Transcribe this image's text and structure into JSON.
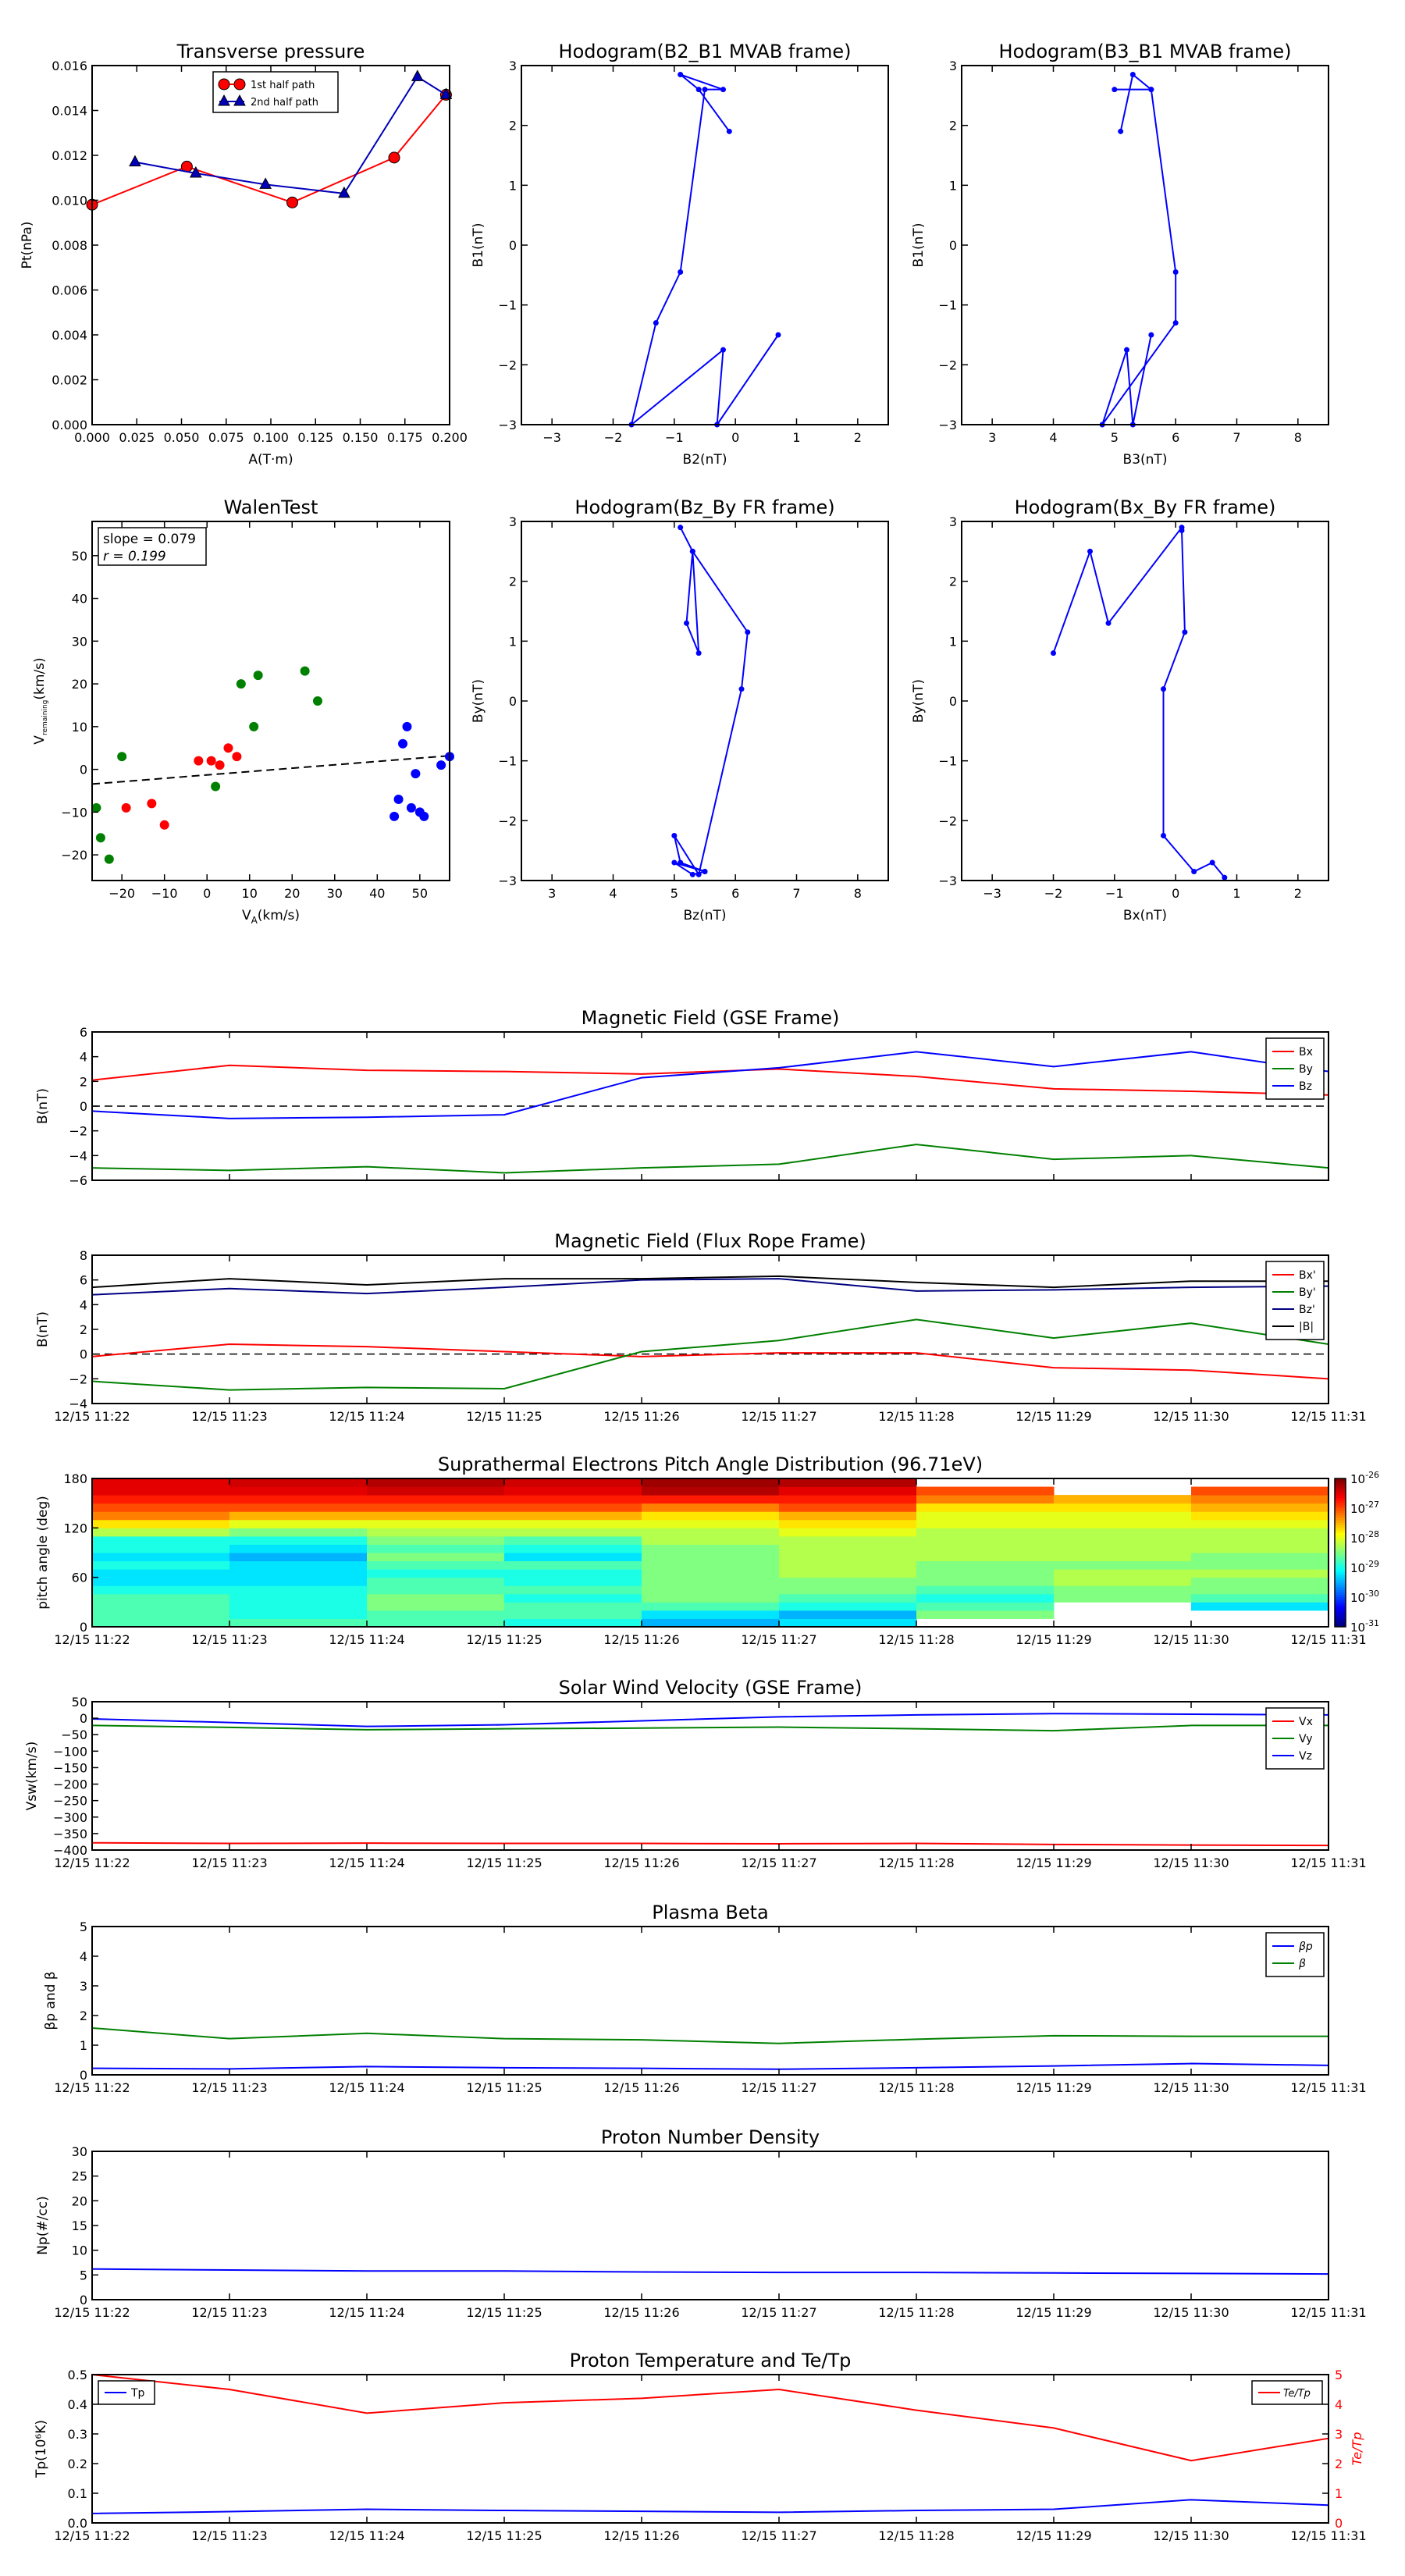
{
  "chart_data": [
    {
      "id": "tp",
      "type": "line",
      "title": "Transverse pressure",
      "xlabel": "A(T·m)",
      "ylabel": "Pt(nPa)",
      "xlim": [
        0,
        0.2
      ],
      "ylim": [
        0,
        0.016
      ],
      "xticks": [
        "0.000",
        "0.025",
        "0.050",
        "0.075",
        "0.100",
        "0.125",
        "0.150",
        "0.175",
        "0.200"
      ],
      "yticks": [
        "0.000",
        "0.002",
        "0.004",
        "0.006",
        "0.008",
        "0.010",
        "0.012",
        "0.014",
        "0.016"
      ],
      "legend": "upper center",
      "series": [
        {
          "name": "1st half path",
          "color": "#ff0000",
          "marker": "circle",
          "x": [
            0.0,
            0.053,
            0.112,
            0.169,
            0.198
          ],
          "y": [
            0.0098,
            0.0115,
            0.0099,
            0.0119,
            0.0147
          ]
        },
        {
          "name": "2nd half path",
          "color": "#0000bb",
          "marker": "triangle",
          "x": [
            0.024,
            0.058,
            0.097,
            0.141,
            0.182,
            0.198
          ],
          "y": [
            0.0117,
            0.0112,
            0.0107,
            0.0103,
            0.0155,
            0.0147
          ]
        }
      ]
    },
    {
      "id": "h1",
      "type": "line",
      "title": "Hodogram(B2_B1 MVAB frame)",
      "xlabel": "B2(nT)",
      "ylabel": "B1(nT)",
      "xlim": [
        -3.5,
        2.5
      ],
      "ylim": [
        -3,
        3
      ],
      "xticks": [
        "−3",
        "−2",
        "−1",
        "0",
        "1",
        "2"
      ],
      "yticks": [
        "−3",
        "−2",
        "−1",
        "0",
        "1",
        "2",
        "3"
      ],
      "series": [
        {
          "color": "#0000ff",
          "marker": "dot",
          "x": [
            -0.1,
            -0.6,
            -0.9,
            -0.2,
            -0.5,
            -0.9,
            -1.3,
            -1.7,
            -0.2,
            -0.3,
            0.7
          ],
          "y": [
            1.9,
            2.6,
            2.85,
            2.6,
            2.6,
            -0.45,
            -1.3,
            -3.0,
            -1.75,
            -3.0,
            -1.5
          ]
        }
      ]
    },
    {
      "id": "h2",
      "type": "line",
      "title": "Hodogram(B3_B1 MVAB frame)",
      "xlabel": "B3(nT)",
      "ylabel": "B1(nT)",
      "xlim": [
        2.5,
        8.5
      ],
      "ylim": [
        -3,
        3
      ],
      "xticks": [
        "3",
        "4",
        "5",
        "6",
        "7",
        "8"
      ],
      "yticks": [
        "−3",
        "−2",
        "−1",
        "0",
        "1",
        "2",
        "3"
      ],
      "series": [
        {
          "color": "#0000ff",
          "marker": "dot",
          "x": [
            5.1,
            5.3,
            5.6,
            5.0,
            5.6,
            6.0,
            6.0,
            4.8,
            5.2,
            5.3,
            5.6
          ],
          "y": [
            1.9,
            2.85,
            2.6,
            2.6,
            2.6,
            -0.45,
            -1.3,
            -3.0,
            -1.75,
            -3.0,
            -1.5
          ]
        }
      ]
    },
    {
      "id": "walen",
      "type": "scatter",
      "title": "WalenTest",
      "xlabel": "V",
      "xlabel_sub": "A",
      "xlabel_tail": "(km/s)",
      "ylabel": "V",
      "ylabel_sub": "remaining",
      "ylabel_tail": "(km/s)",
      "xlim": [
        -27,
        57
      ],
      "ylim": [
        -26,
        58
      ],
      "xticks": [
        "−20",
        "−10",
        "0",
        "10",
        "20",
        "30",
        "40",
        "50"
      ],
      "yticks": [
        "−20",
        "−10",
        "0",
        "10",
        "20",
        "30",
        "40",
        "50"
      ],
      "annotation": [
        "slope = 0.079",
        "r = 0.199"
      ],
      "fit": {
        "slope": 0.079,
        "intercept": -1.3
      },
      "series": [
        {
          "color": "#ff0000",
          "x": [
            -19,
            -13,
            -10,
            -2,
            1,
            3,
            5,
            7
          ],
          "y": [
            -9,
            -8,
            -13,
            2,
            2,
            1,
            5,
            3
          ]
        },
        {
          "color": "#008000",
          "x": [
            -26,
            -25,
            -23,
            -20,
            2,
            8,
            11,
            12,
            23,
            26
          ],
          "y": [
            -9,
            -16,
            -21,
            3,
            -4,
            20,
            10,
            22,
            23,
            16
          ]
        },
        {
          "color": "#0000ff",
          "x": [
            44,
            45,
            46,
            47,
            48,
            49,
            50,
            51,
            55,
            57
          ],
          "y": [
            -11,
            -7,
            6,
            10,
            -9,
            -1,
            -10,
            -11,
            1,
            3
          ]
        }
      ]
    },
    {
      "id": "h3",
      "type": "line",
      "title": "Hodogram(Bz_By FR frame)",
      "xlabel": "Bz(nT)",
      "ylabel": "By(nT)",
      "xlim": [
        2.5,
        8.5
      ],
      "ylim": [
        -3,
        3
      ],
      "xticks": [
        "3",
        "4",
        "5",
        "6",
        "7",
        "8"
      ],
      "yticks": [
        "−3",
        "−2",
        "−1",
        "0",
        "1",
        "2",
        "3"
      ],
      "series": [
        {
          "color": "#0000ff",
          "marker": "dot",
          "x": [
            5.1,
            5.3,
            5.2,
            5.4,
            5.3,
            6.2,
            6.1,
            5.4,
            5.0,
            5.1,
            5.5,
            5.0,
            5.3,
            5.5
          ],
          "y": [
            2.9,
            2.5,
            1.3,
            0.8,
            2.5,
            1.15,
            0.2,
            -2.9,
            -2.25,
            -2.7,
            -2.85,
            -2.7,
            -2.9,
            -2.85
          ]
        }
      ]
    },
    {
      "id": "h4",
      "type": "line",
      "title": "Hodogram(Bx_By FR frame)",
      "xlabel": "Bx(nT)",
      "ylabel": "By(nT)",
      "xlim": [
        -3.5,
        2.5
      ],
      "ylim": [
        -3,
        3
      ],
      "xticks": [
        "−3",
        "−2",
        "−1",
        "0",
        "1",
        "2"
      ],
      "yticks": [
        "−3",
        "−2",
        "−1",
        "0",
        "1",
        "2",
        "3"
      ],
      "series": [
        {
          "color": "#0000ff",
          "marker": "dot",
          "x": [
            -2.0,
            -1.4,
            -1.1,
            0.1,
            0.1,
            0.15,
            -0.2,
            -0.2,
            0.3,
            0.6,
            0.8
          ],
          "y": [
            0.8,
            2.5,
            1.3,
            2.9,
            2.85,
            1.15,
            0.2,
            -2.25,
            -2.85,
            -2.7,
            -2.95
          ]
        }
      ]
    },
    {
      "id": "mag_gse",
      "type": "line",
      "title": "Magnetic Field (GSE Frame)",
      "ylabel": "B(nT)",
      "ylim": [
        -6,
        6
      ],
      "yticks": [
        "−6",
        "−4",
        "−2",
        "0",
        "2",
        "4",
        "6"
      ],
      "zero_line": true,
      "categories": [
        "12/15 11:22",
        "12/15 11:23",
        "12/15 11:24",
        "12/15 11:25",
        "12/15 11:26",
        "12/15 11:27",
        "12/15 11:28",
        "12/15 11:29",
        "12/15 11:30",
        "12/15 11:31"
      ],
      "series": [
        {
          "name": "Bx",
          "color": "#ff0000",
          "values": [
            2.1,
            3.3,
            2.9,
            2.8,
            2.6,
            3.0,
            2.4,
            1.4,
            1.2,
            0.9
          ]
        },
        {
          "name": "By",
          "color": "#008000",
          "values": [
            -5.0,
            -5.2,
            -4.9,
            -5.4,
            -5.0,
            -4.7,
            -3.1,
            -4.3,
            -4.0,
            -5.0
          ]
        },
        {
          "name": "Bz",
          "color": "#0000ff",
          "values": [
            -0.4,
            -1.0,
            -0.9,
            -0.7,
            2.3,
            3.1,
            4.4,
            3.2,
            4.4,
            2.8
          ]
        }
      ]
    },
    {
      "id": "mag_fr",
      "type": "line",
      "title": "Magnetic Field (Flux Rope Frame)",
      "ylabel": "B(nT)",
      "ylim": [
        -4,
        8
      ],
      "yticks": [
        "−4",
        "−2",
        "0",
        "2",
        "4",
        "6",
        "8"
      ],
      "zero_line": true,
      "categories": [
        "12/15 11:22",
        "12/15 11:23",
        "12/15 11:24",
        "12/15 11:25",
        "12/15 11:26",
        "12/15 11:27",
        "12/15 11:28",
        "12/15 11:29",
        "12/15 11:30",
        "12/15 11:31"
      ],
      "xticks_shown": true,
      "series": [
        {
          "name": "Bx'",
          "color": "#ff0000",
          "values": [
            -0.2,
            0.8,
            0.6,
            0.2,
            -0.2,
            0.1,
            0.1,
            -1.1,
            -1.3,
            -2.0
          ]
        },
        {
          "name": "By'",
          "color": "#008000",
          "values": [
            -2.2,
            -2.9,
            -2.7,
            -2.8,
            0.2,
            1.1,
            2.8,
            1.3,
            2.5,
            0.8
          ]
        },
        {
          "name": "Bz'",
          "color": "#000080",
          "values": [
            4.8,
            5.3,
            4.9,
            5.4,
            6.0,
            6.1,
            5.1,
            5.2,
            5.4,
            5.5
          ]
        },
        {
          "name": "|B|",
          "color": "#000000",
          "values": [
            5.4,
            6.1,
            5.6,
            6.1,
            6.1,
            6.3,
            5.8,
            5.4,
            5.9,
            5.9
          ]
        }
      ]
    },
    {
      "id": "pad",
      "type": "heatmap",
      "title": "Suprathermal Electrons Pitch Angle Distribution (96.71eV)",
      "ylabel": "pitch angle (deg)",
      "ylim": [
        0,
        180
      ],
      "yticks": [
        "0",
        "60",
        "120",
        "180"
      ],
      "categories": [
        "12/15 11:22",
        "12/15 11:23",
        "12/15 11:24",
        "12/15 11:25",
        "12/15 11:26",
        "12/15 11:27",
        "12/15 11:28",
        "12/15 11:29",
        "12/15 11:30",
        "12/15 11:31"
      ],
      "colorbar": {
        "ticks": [
          "-26",
          "-27",
          "-28",
          "-29",
          "-30",
          "-31"
        ],
        "base": "10"
      },
      "bins": 18,
      "columns": [
        [
          0.45,
          0.45,
          0.45,
          0.45,
          0.4,
          0.35,
          0.35,
          0.4,
          0.35,
          0.4,
          0.4,
          0.55,
          0.65,
          0.75,
          0.8,
          0.85,
          0.9,
          0.9
        ],
        [
          0.45,
          0.4,
          0.4,
          0.4,
          0.4,
          0.35,
          0.35,
          0.35,
          0.3,
          0.35,
          0.4,
          0.5,
          0.6,
          0.7,
          0.8,
          0.85,
          0.9,
          0.92
        ],
        [
          0.45,
          0.45,
          0.5,
          0.5,
          0.45,
          0.45,
          0.4,
          0.45,
          0.5,
          0.45,
          0.5,
          0.55,
          0.6,
          0.7,
          0.8,
          0.85,
          0.92,
          0.95
        ],
        [
          0.4,
          0.45,
          0.45,
          0.4,
          0.45,
          0.4,
          0.4,
          0.45,
          0.35,
          0.4,
          0.45,
          0.55,
          0.6,
          0.7,
          0.8,
          0.85,
          0.9,
          0.92
        ],
        [
          0.3,
          0.35,
          0.45,
          0.5,
          0.5,
          0.5,
          0.5,
          0.5,
          0.5,
          0.5,
          0.55,
          0.55,
          0.6,
          0.65,
          0.75,
          0.85,
          0.95,
          0.97
        ],
        [
          0.35,
          0.3,
          0.4,
          0.45,
          0.5,
          0.5,
          0.55,
          0.55,
          0.55,
          0.55,
          0.55,
          0.6,
          0.65,
          0.7,
          0.8,
          0.85,
          0.9,
          0.95
        ],
        [
          null,
          0.5,
          0.45,
          0.4,
          0.45,
          0.5,
          0.5,
          0.5,
          0.55,
          0.55,
          0.55,
          0.55,
          0.6,
          0.6,
          0.65,
          0.75,
          0.8,
          null
        ],
        [
          null,
          null,
          null,
          0.5,
          0.5,
          0.55,
          0.55,
          0.5,
          0.55,
          0.55,
          0.55,
          0.55,
          0.6,
          0.6,
          0.65,
          0.7,
          null,
          null
        ],
        [
          null,
          null,
          0.35,
          0.45,
          0.5,
          0.5,
          0.55,
          0.5,
          0.5,
          0.55,
          0.55,
          0.55,
          0.6,
          0.65,
          0.7,
          0.75,
          0.8,
          null
        ]
      ]
    },
    {
      "id": "vel",
      "type": "line",
      "title": "Solar Wind Velocity (GSE Frame)",
      "ylabel": "Vsw(km/s)",
      "ylim": [
        -400,
        50
      ],
      "yticks": [
        "−400",
        "−350",
        "−300",
        "−250",
        "−200",
        "−150",
        "−100",
        "−50",
        "0",
        "50"
      ],
      "categories": [
        "12/15 11:22",
        "12/15 11:23",
        "12/15 11:24",
        "12/15 11:25",
        "12/15 11:26",
        "12/15 11:27",
        "12/15 11:28",
        "12/15 11:29",
        "12/15 11:30",
        "12/15 11:31"
      ],
      "series": [
        {
          "name": "Vx",
          "color": "#ff0000",
          "values": [
            -378,
            -380,
            -379,
            -380,
            -380,
            -381,
            -380,
            -383,
            -385,
            -386
          ]
        },
        {
          "name": "Vy",
          "color": "#008000",
          "values": [
            -22,
            -28,
            -35,
            -32,
            -30,
            -27,
            -32,
            -38,
            -22,
            -22
          ]
        },
        {
          "name": "Vz",
          "color": "#0000ff",
          "values": [
            -2,
            -13,
            -25,
            -20,
            -8,
            4,
            10,
            14,
            12,
            10
          ]
        }
      ]
    },
    {
      "id": "beta",
      "type": "line",
      "title": "Plasma Beta",
      "ylabel": "βp and β",
      "ylim": [
        0,
        5
      ],
      "yticks": [
        "0",
        "1",
        "2",
        "3",
        "4",
        "5"
      ],
      "categories": [
        "12/15 11:22",
        "12/15 11:23",
        "12/15 11:24",
        "12/15 11:25",
        "12/15 11:26",
        "12/15 11:27",
        "12/15 11:28",
        "12/15 11:29",
        "12/15 11:30",
        "12/15 11:31"
      ],
      "series": [
        {
          "name": "βp",
          "color": "#0000ff",
          "values": [
            0.22,
            0.2,
            0.28,
            0.24,
            0.22,
            0.19,
            0.24,
            0.3,
            0.38,
            0.32
          ]
        },
        {
          "name": "β",
          "color": "#008000",
          "values": [
            1.58,
            1.22,
            1.4,
            1.22,
            1.18,
            1.06,
            1.2,
            1.32,
            1.3,
            1.3
          ]
        }
      ]
    },
    {
      "id": "np",
      "type": "line",
      "title": "Proton Number Density",
      "ylabel": "Np(#/cc)",
      "ylim": [
        0,
        30
      ],
      "yticks": [
        "0",
        "5",
        "10",
        "15",
        "20",
        "25",
        "30"
      ],
      "categories": [
        "12/15 11:22",
        "12/15 11:23",
        "12/15 11:24",
        "12/15 11:25",
        "12/15 11:26",
        "12/15 11:27",
        "12/15 11:28",
        "12/15 11:29",
        "12/15 11:30",
        "12/15 11:31"
      ],
      "series": [
        {
          "name": "Np",
          "color": "#0000ff",
          "values": [
            6.2,
            6.0,
            5.8,
            5.8,
            5.6,
            5.5,
            5.5,
            5.4,
            5.3,
            5.2
          ]
        }
      ]
    },
    {
      "id": "tpr",
      "type": "line",
      "title": "Proton Temperature and Te/Tp",
      "ylabel": "Tp(10⁶K)",
      "ylim": [
        0,
        0.5
      ],
      "yticks": [
        "0.0",
        "0.1",
        "0.2",
        "0.3",
        "0.4",
        "0.5"
      ],
      "ylim2": [
        0,
        5
      ],
      "yticks2": [
        "0",
        "1",
        "2",
        "3",
        "4",
        "5"
      ],
      "categories": [
        "12/15 11:22",
        "12/15 11:23",
        "12/15 11:24",
        "12/15 11:25",
        "12/15 11:26",
        "12/15 11:27",
        "12/15 11:28",
        "12/15 11:29",
        "12/15 11:30",
        "12/15 11:31"
      ],
      "series": [
        {
          "name": "Tp",
          "color": "#0000ff",
          "axis": "left",
          "values": [
            0.032,
            0.038,
            0.046,
            0.042,
            0.039,
            0.036,
            0.042,
            0.046,
            0.078,
            0.06
          ]
        },
        {
          "name": "Te/Tp",
          "color": "#ff0000",
          "axis": "right",
          "values": [
            5.1,
            4.5,
            3.7,
            4.05,
            4.2,
            4.5,
            3.8,
            3.2,
            2.1,
            2.85
          ]
        }
      ]
    }
  ]
}
